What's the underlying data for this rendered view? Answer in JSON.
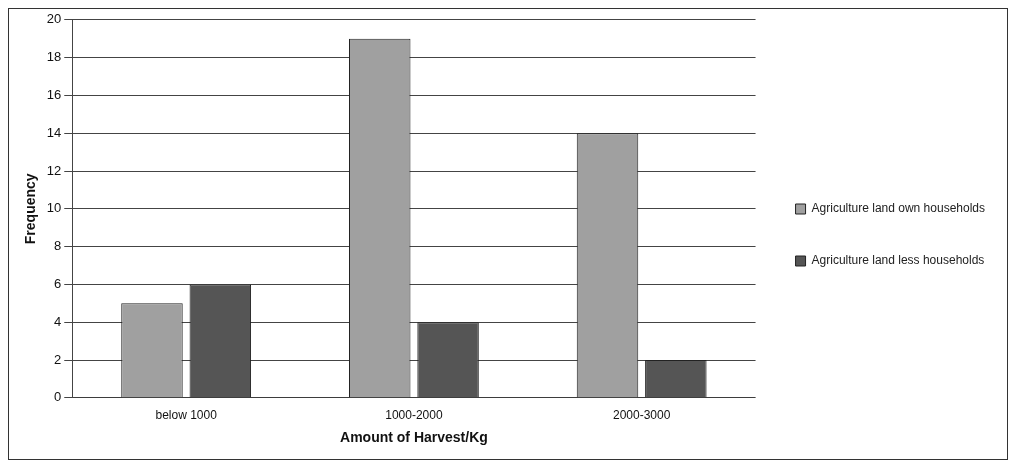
{
  "chart_data": {
    "type": "bar",
    "xlabel": "Amount of Harvest/Kg",
    "ylabel": "Frequency",
    "categories": [
      "below 1000",
      "1000-2000",
      "2000-3000"
    ],
    "series": [
      {
        "name": "Agriculture land own households",
        "color": "#a0a0a0",
        "values": [
          5,
          19,
          14
        ]
      },
      {
        "name": "Agriculture land less households",
        "color": "#555555",
        "values": [
          6,
          4,
          2
        ]
      }
    ],
    "ylim": [
      0,
      20
    ],
    "yticks": [
      0,
      2,
      4,
      6,
      8,
      10,
      12,
      14,
      16,
      18,
      20
    ],
    "grid": "y",
    "legend": "right"
  }
}
